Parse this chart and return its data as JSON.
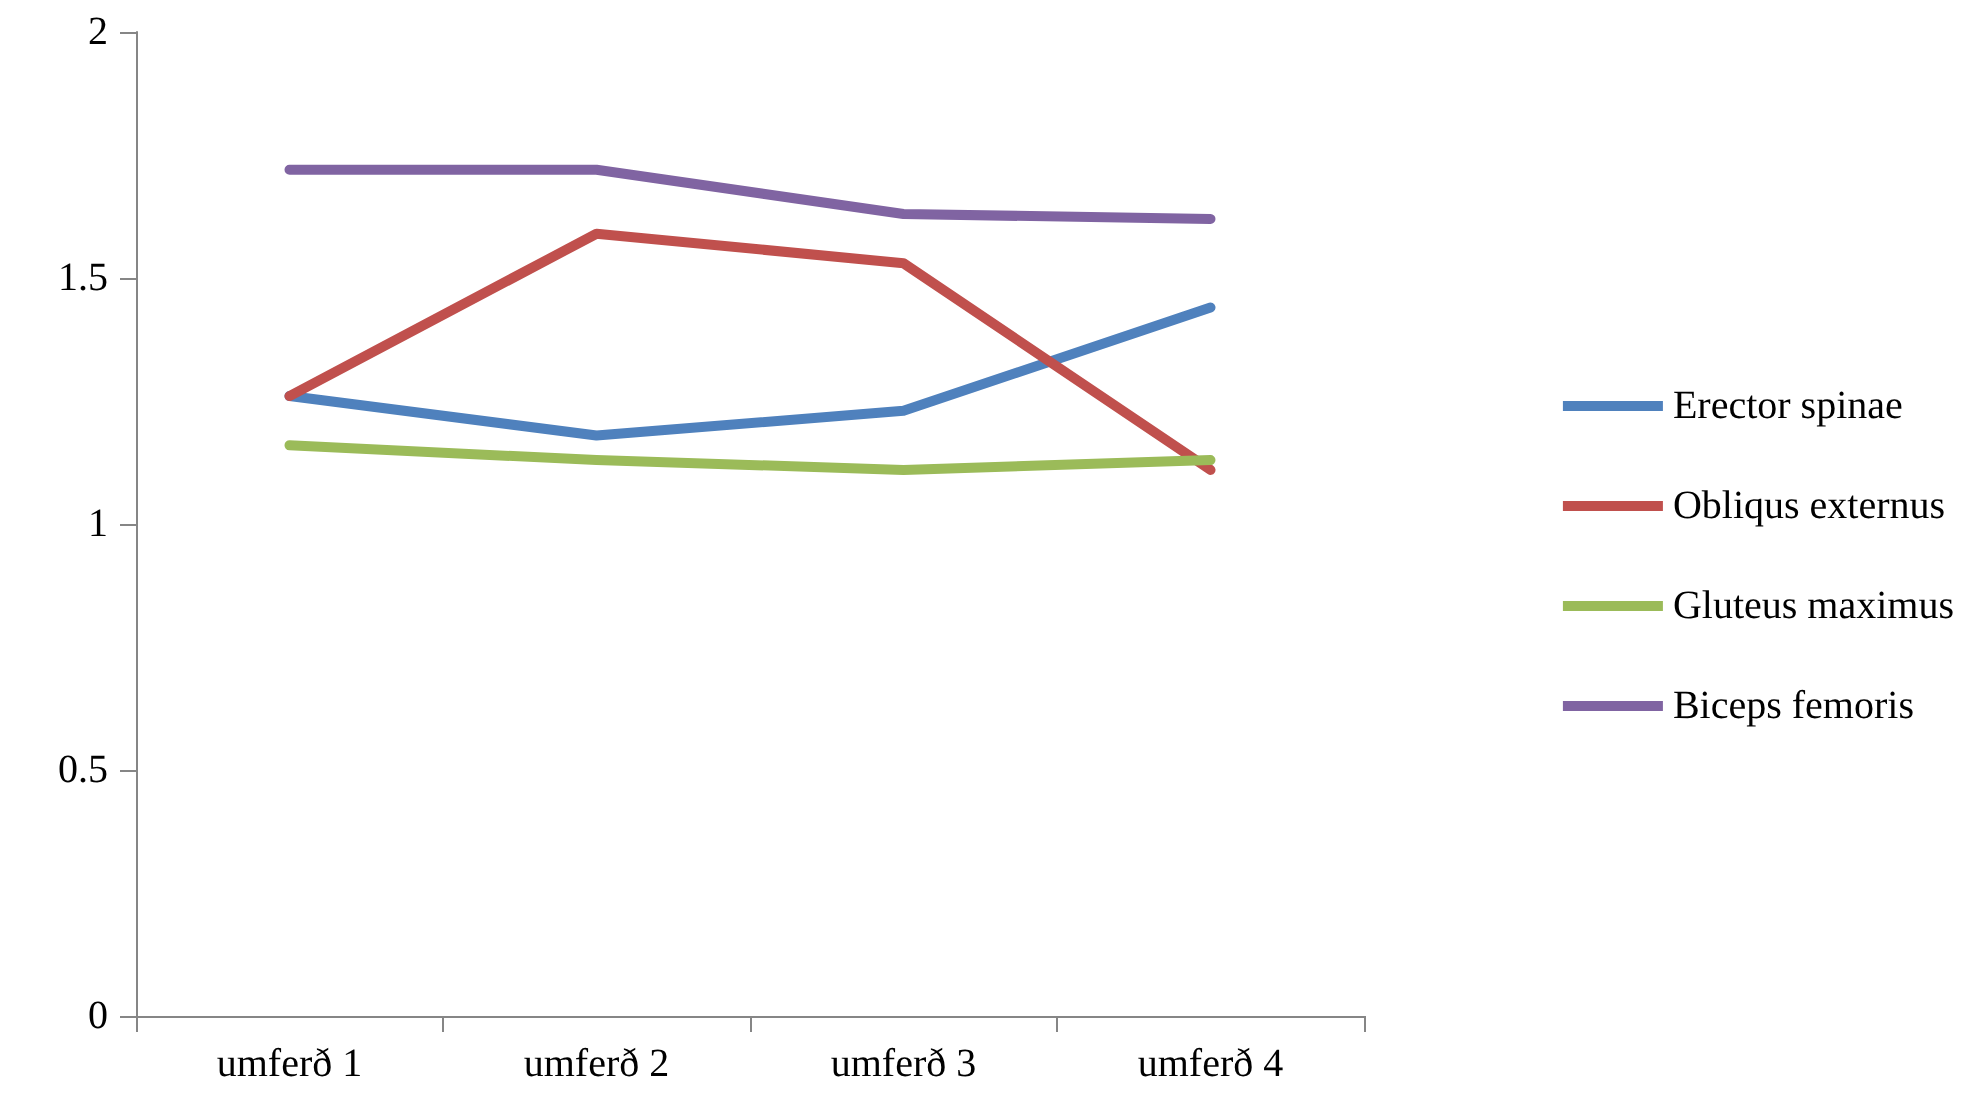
{
  "chart_data": {
    "type": "line",
    "categories": [
      "umferð 1",
      "umferð 2",
      "umferð 3",
      "umferð 4"
    ],
    "series": [
      {
        "name": "Erector spinae",
        "color": "#4f81bd",
        "values": [
          1.26,
          1.18,
          1.23,
          1.44
        ]
      },
      {
        "name": "Obliqus externus",
        "color": "#c0504d",
        "values": [
          1.26,
          1.59,
          1.53,
          1.11
        ]
      },
      {
        "name": "Gluteus maximus",
        "color": "#9bbb59",
        "values": [
          1.16,
          1.13,
          1.11,
          1.13
        ]
      },
      {
        "name": "Biceps femoris",
        "color": "#8064a2",
        "values": [
          1.72,
          1.72,
          1.63,
          1.62
        ]
      }
    ],
    "ylim": [
      0,
      2
    ],
    "yticks": [
      0,
      0.5,
      1,
      1.5,
      2
    ],
    "grid": false,
    "legend": "right",
    "marker": "none",
    "line_style": "solid"
  }
}
